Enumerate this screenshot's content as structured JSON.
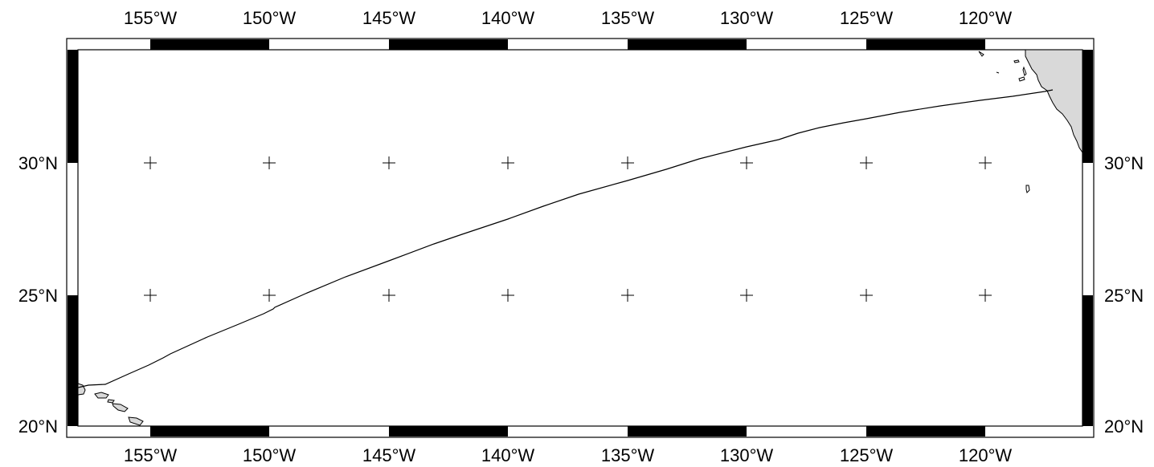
{
  "map": {
    "lon_labels": [
      "155°W",
      "150°W",
      "145°W",
      "140°W",
      "135°W",
      "130°W",
      "125°W",
      "120°W"
    ],
    "lat_labels": [
      "20°N",
      "25°N",
      "30°N"
    ],
    "land_color": "#d9d9d9",
    "track_color": "#000000",
    "frame_color": "#000000"
  }
}
